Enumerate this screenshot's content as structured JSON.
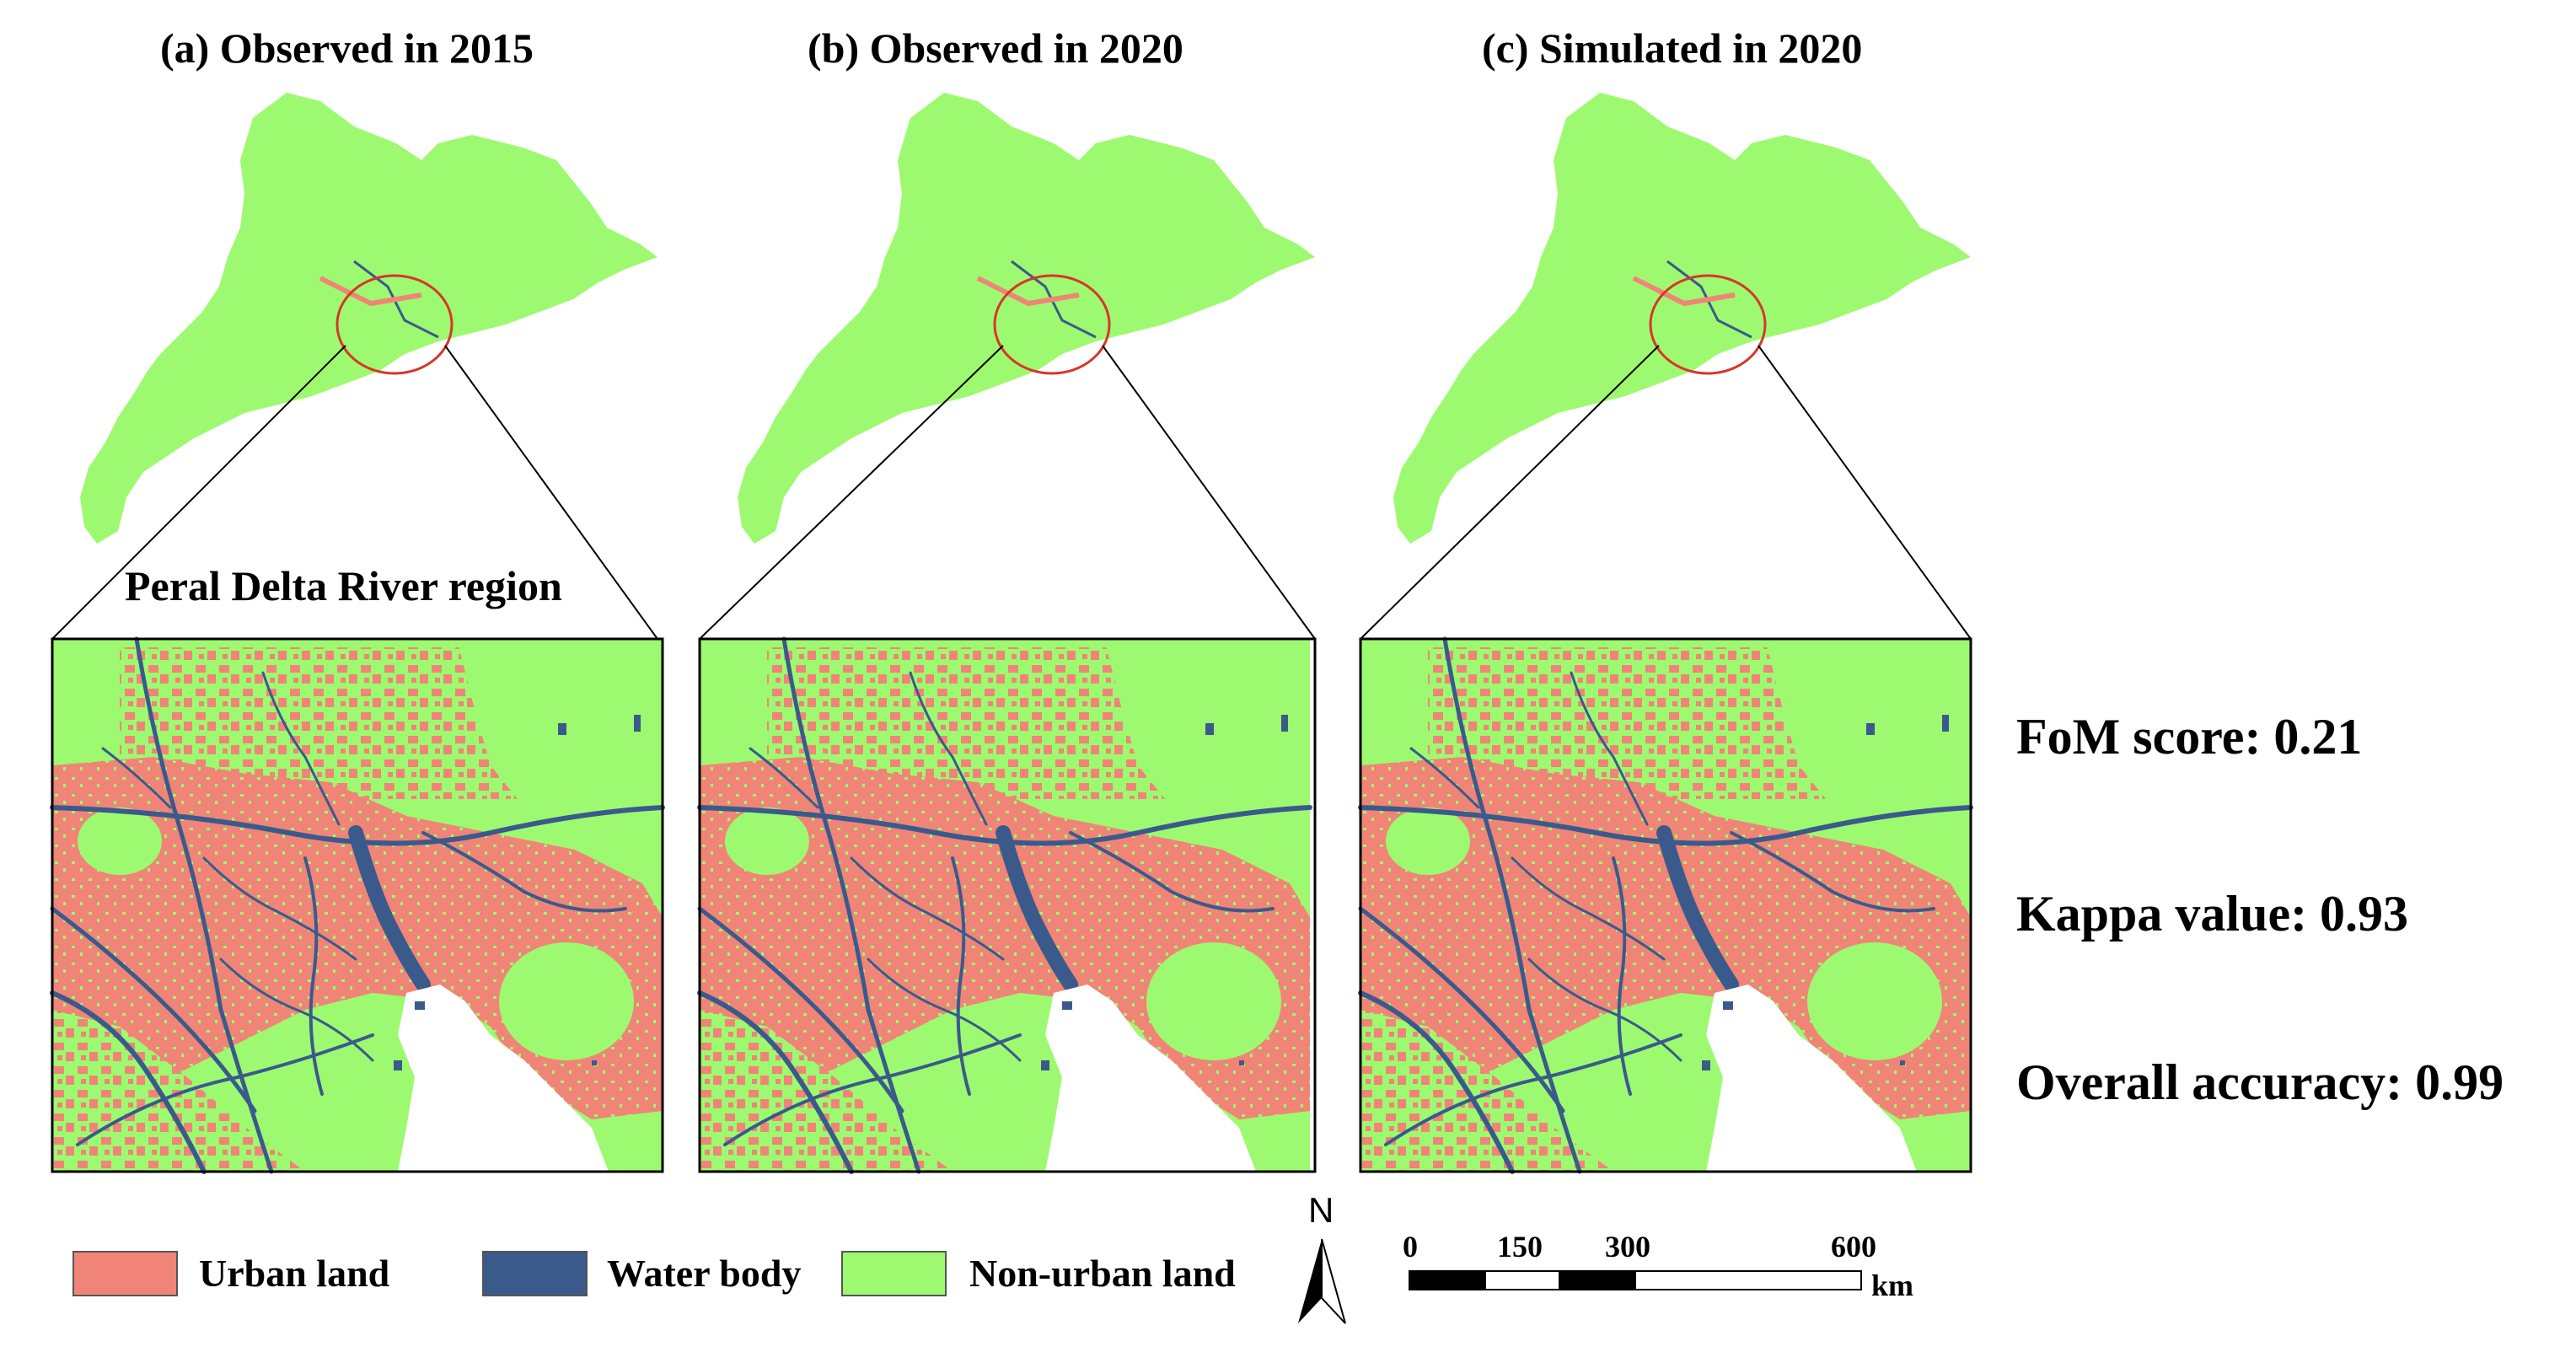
{
  "panels": [
    {
      "title": "(a) Observed in 2015"
    },
    {
      "title": "(b) Observed in 2020"
    },
    {
      "title": "(c) Simulated in 2020"
    }
  ],
  "region_label": "Peral Delta River region",
  "metrics": {
    "fom": "FoM score: 0.21",
    "kappa": "Kappa value: 0.93",
    "overall_accuracy": "Overall accuracy: 0.99"
  },
  "legend": [
    {
      "label": "Urban land",
      "color": "#f08577"
    },
    {
      "label": "Water body",
      "color": "#3a5a8c"
    },
    {
      "label": "Non-urban land",
      "color": "#9dfa70"
    }
  ],
  "north_arrow": {
    "label": "N"
  },
  "scale_bar": {
    "ticks": [
      "0",
      "150",
      "300",
      "600"
    ],
    "unit": "km"
  },
  "colors": {
    "urban": "#f08577",
    "water": "#3a5a8c",
    "nonurban": "#9dfa70",
    "highlight_circle": "#d9352b"
  }
}
